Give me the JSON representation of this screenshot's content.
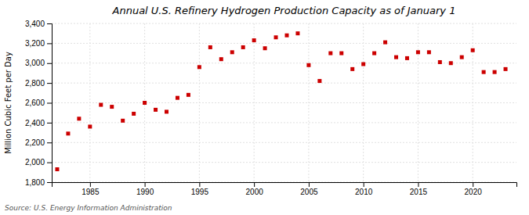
{
  "chart_data": {
    "type": "scatter",
    "title": "Annual U.S. Refinery Hydrogen Production Capacity as of January 1",
    "ylabel": "Million Cubic Feet per Day",
    "annotation": "Source: U.S. Energy Information Administration",
    "x": [
      1982,
      1983,
      1984,
      1985,
      1986,
      1987,
      1988,
      1989,
      1990,
      1991,
      1992,
      1993,
      1994,
      1995,
      1996,
      1997,
      1998,
      1999,
      2000,
      2001,
      2002,
      2003,
      2004,
      2005,
      2006,
      2007,
      2008,
      2009,
      2010,
      2011,
      2012,
      2013,
      2014,
      2015,
      2016,
      2017,
      2018,
      2019,
      2020,
      2021,
      2022,
      2023
    ],
    "values": [
      1930,
      2290,
      2440,
      2360,
      2580,
      2560,
      2420,
      2490,
      2600,
      2530,
      2510,
      2650,
      2680,
      2960,
      3160,
      3040,
      3110,
      3160,
      3230,
      3150,
      3260,
      3280,
      3300,
      2980,
      2820,
      3100,
      3100,
      2940,
      2990,
      3100,
      3210,
      3060,
      3050,
      3110,
      3110,
      3010,
      3000,
      3060,
      3130,
      2910,
      2910,
      2940
    ],
    "color": "#cc0000",
    "marker": "square",
    "xlim": [
      1981.5,
      2024
    ],
    "xticks": [
      1985,
      1990,
      1995,
      2000,
      2005,
      2010,
      2015,
      2020
    ],
    "ylim": [
      1800,
      3400
    ],
    "yticks": [
      {
        "value": 1800,
        "label": "1,800"
      },
      {
        "value": 2000,
        "label": "2,000"
      },
      {
        "value": 2200,
        "label": "2,200"
      },
      {
        "value": 2400,
        "label": "2,400"
      },
      {
        "value": 2600,
        "label": "2,600"
      },
      {
        "value": 2800,
        "label": "2,800"
      },
      {
        "value": 3000,
        "label": "3,000"
      },
      {
        "value": 3200,
        "label": "3,200"
      },
      {
        "value": 3400,
        "label": "3,400"
      }
    ],
    "grid": true
  }
}
